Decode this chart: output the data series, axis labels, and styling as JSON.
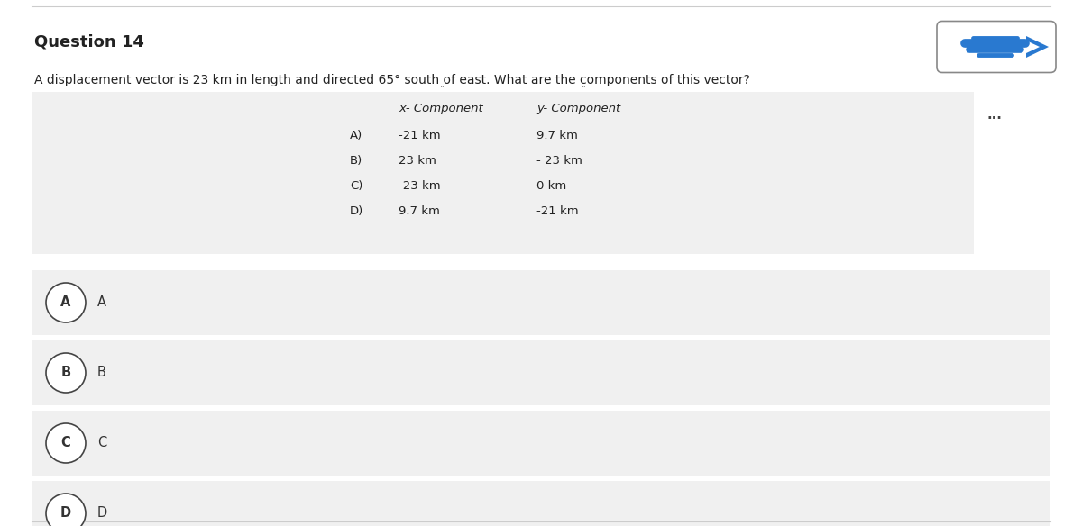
{
  "title": "Question 14",
  "question_text": "A displacement vector is 23 km in length and directed 65° south of east. What are the components of this vector?",
  "table_header_x": "x- Component",
  "table_header_y": "y- Component",
  "table_rows": [
    [
      "A)",
      "-21 km",
      "9.7 km"
    ],
    [
      "B)",
      "23 km",
      "- 23 km"
    ],
    [
      "C)",
      "-23 km",
      "0 km"
    ],
    [
      "D)",
      "9.7 km",
      "-21 km"
    ]
  ],
  "answer_options": [
    "A",
    "B",
    "C",
    "D"
  ],
  "bg_color": "#ffffff",
  "question_bg": "#f0f0f0",
  "option_bg": "#f0f0f0",
  "line_color": "#cccccc",
  "circle_edge_color": "#444444",
  "title_fontsize": 13,
  "question_fontsize": 10,
  "table_fontsize": 9.5,
  "option_fontsize": 10.5,
  "three_dots": "...",
  "fig_width": 12.0,
  "fig_height": 5.84,
  "dpi": 100
}
